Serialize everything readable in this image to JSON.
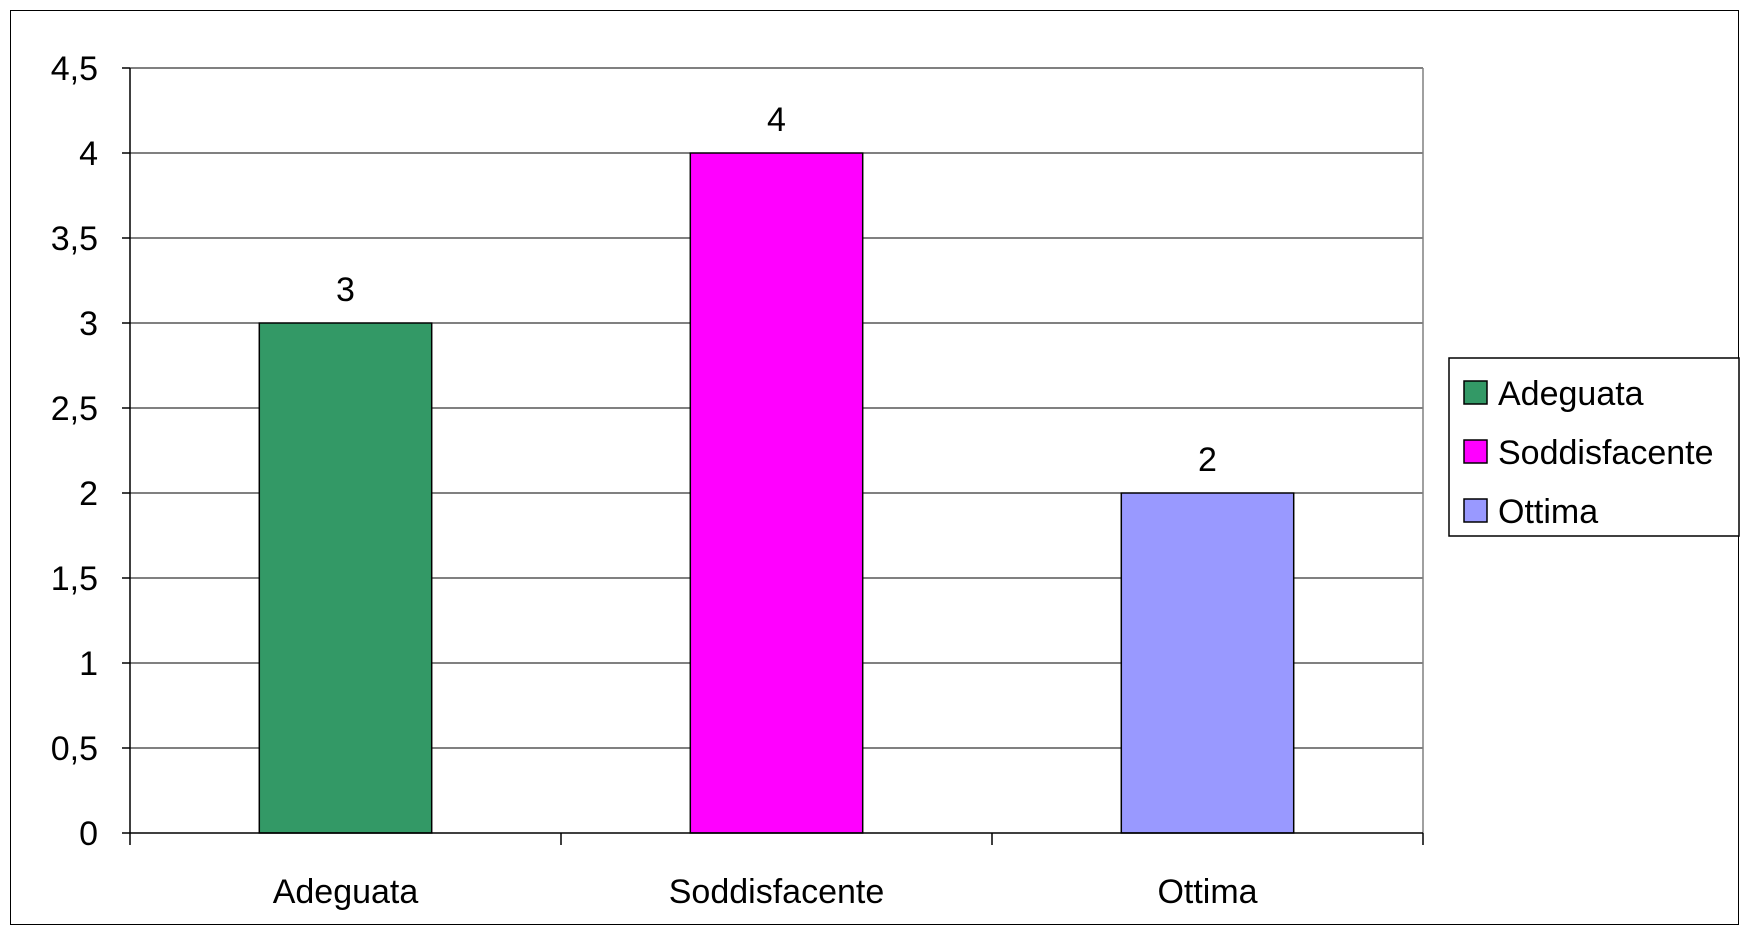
{
  "chart_data": {
    "type": "bar",
    "categories": [
      "Adeguata",
      "Soddisfacente",
      "Ottima"
    ],
    "values": [
      3,
      4,
      2
    ],
    "data_labels": [
      "3",
      "4",
      "2"
    ],
    "colors": [
      "#339966",
      "#FF00FF",
      "#9999FF"
    ],
    "title": "",
    "xlabel": "",
    "ylabel": "",
    "ylim": [
      0,
      4.5
    ],
    "yticks": [
      0,
      0.5,
      1,
      1.5,
      2,
      2.5,
      3,
      3.5,
      4,
      4.5
    ],
    "ytick_labels": [
      "0",
      "0,5",
      "1",
      "1,5",
      "2",
      "2,5",
      "3",
      "3,5",
      "4",
      "4,5"
    ],
    "grid": true,
    "legend": {
      "placement": "right",
      "entries": [
        "Adeguata",
        "Soddisfacente",
        "Ottima"
      ]
    }
  }
}
